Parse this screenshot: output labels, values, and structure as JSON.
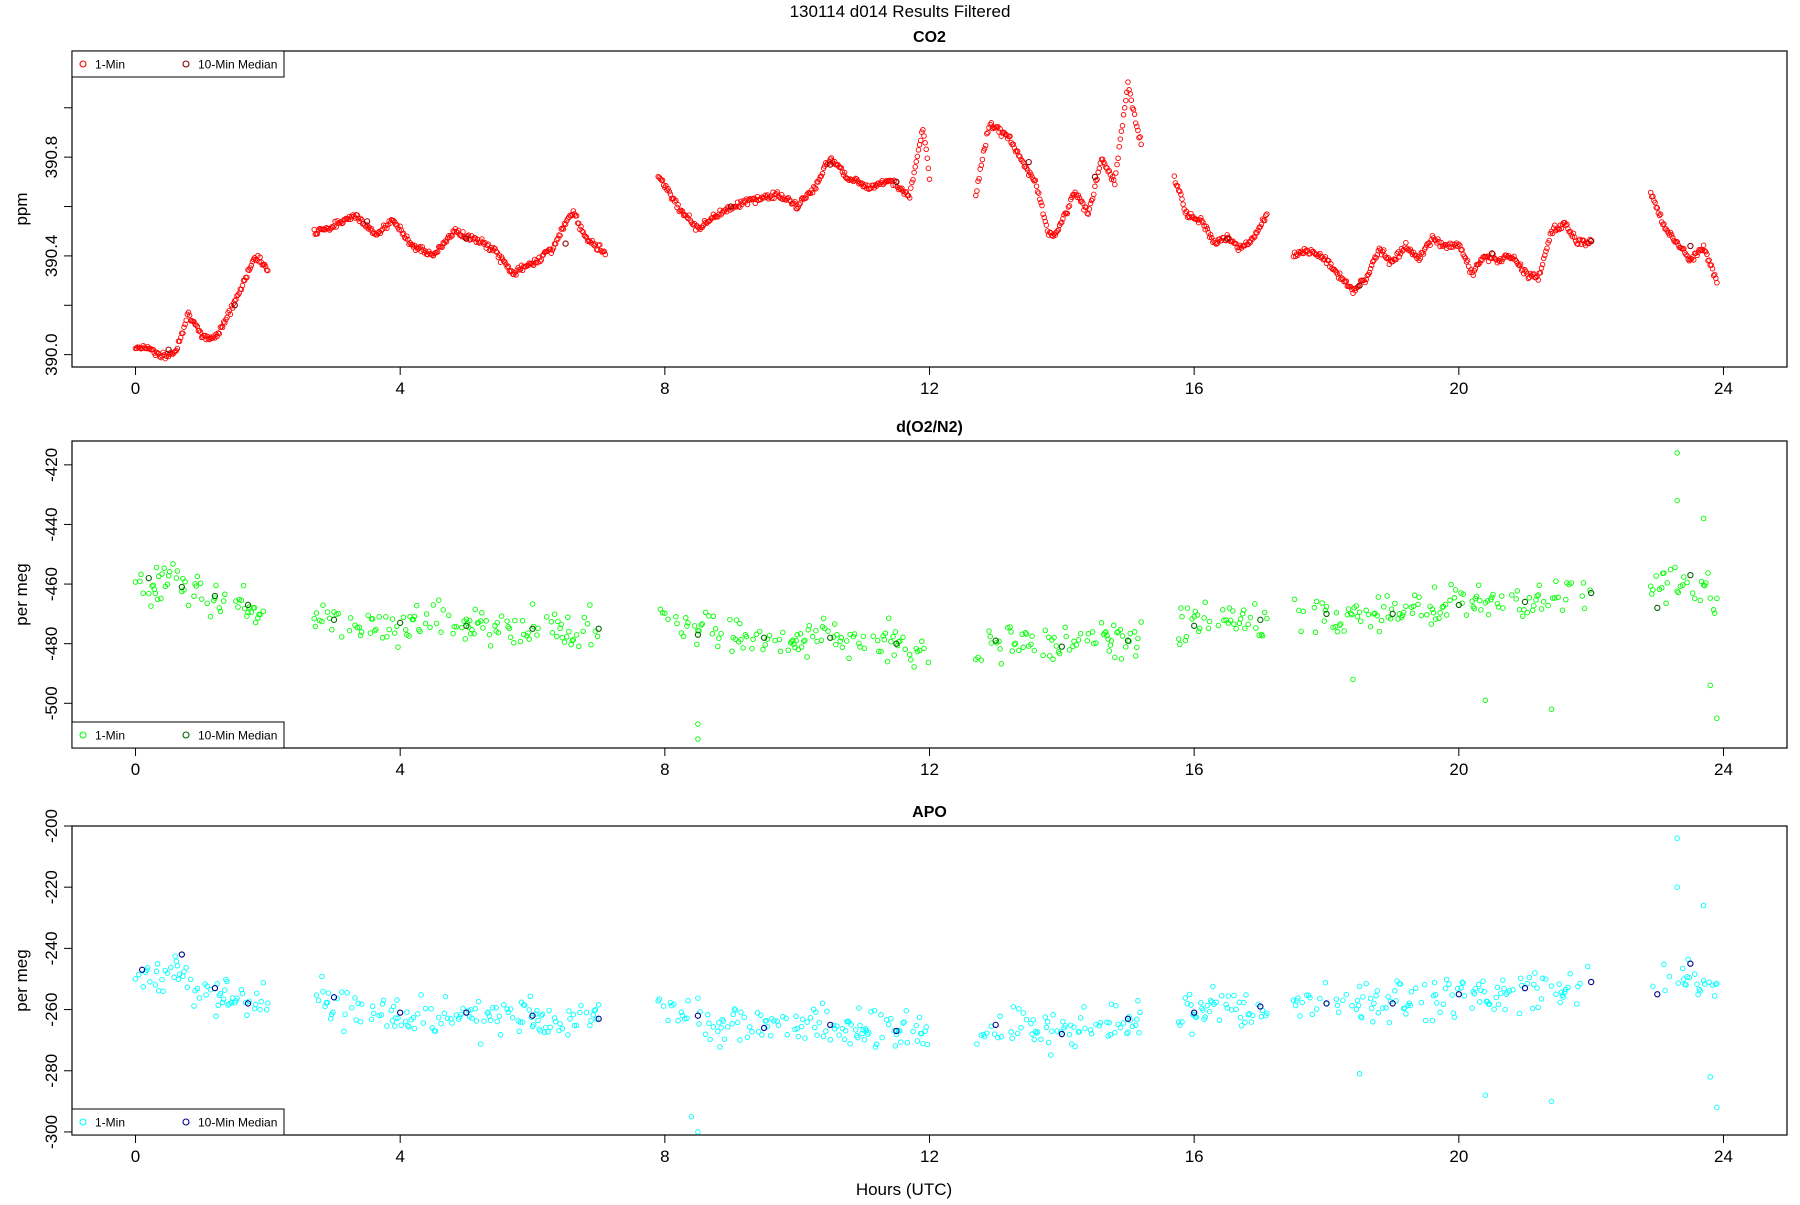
{
  "figure": {
    "title": "130114   d014   Results Filtered",
    "xlabel": "Hours (UTC)"
  },
  "chart_data": [
    {
      "type": "scatter",
      "title": "CO2",
      "xlabel": "",
      "ylabel": "ppm",
      "xlim": [
        -0.96,
        24.96
      ],
      "ylim": [
        389.95,
        391.23
      ],
      "xticks": [
        0,
        4,
        8,
        12,
        16,
        20,
        24
      ],
      "yticks": [
        390.0,
        390.4,
        390.8
      ],
      "ytick_labels": [
        "390.0",
        "390.4",
        "390.8"
      ],
      "ytick_minor": [
        390.2,
        390.6,
        391.0
      ],
      "legend": {
        "position": "top-left",
        "entries": [
          "1-Min",
          "10-Min Median"
        ]
      },
      "series": [
        {
          "name": "1-Min",
          "color": "#ff0000",
          "marker": "open-circle",
          "segments": [
            {
              "x": [
                0.0,
                0.2,
                0.4,
                0.6,
                0.8,
                1.0,
                1.2,
                1.4,
                1.6,
                1.8,
                2.0
              ],
              "y": [
                390.03,
                390.03,
                389.99,
                390.01,
                390.17,
                390.07,
                390.07,
                390.16,
                390.27,
                390.4,
                390.35
              ]
            },
            {
              "x": [
                2.7,
                3.0,
                3.3,
                3.6,
                3.9,
                4.2,
                4.5,
                4.8,
                5.1,
                5.4,
                5.7,
                6.0,
                6.3,
                6.6,
                6.8,
                7.1
              ],
              "y": [
                390.5,
                390.52,
                390.57,
                390.49,
                390.54,
                390.44,
                390.4,
                390.5,
                390.47,
                390.43,
                390.33,
                390.37,
                390.43,
                390.58,
                390.48,
                390.41
              ]
            },
            {
              "x": [
                7.9,
                8.2,
                8.5,
                8.8,
                9.1,
                9.4,
                9.7,
                10.0,
                10.3,
                10.5,
                10.8,
                11.1,
                11.4,
                11.7,
                11.9,
                12.0
              ],
              "y": [
                390.73,
                390.6,
                390.51,
                390.57,
                390.61,
                390.63,
                390.65,
                390.6,
                390.69,
                390.8,
                390.71,
                390.68,
                390.71,
                390.64,
                390.92,
                390.72
              ]
            },
            {
              "x": [
                12.7,
                12.9,
                13.0,
                13.2,
                13.4,
                13.6,
                13.8,
                13.9,
                14.2,
                14.4,
                14.6,
                14.8,
                15.0,
                15.1,
                15.2
              ],
              "y": [
                390.65,
                390.93,
                390.92,
                390.88,
                390.78,
                390.7,
                390.49,
                390.48,
                390.66,
                390.57,
                390.79,
                390.7,
                391.1,
                390.96,
                390.86
              ]
            },
            {
              "x": [
                15.7,
                15.9,
                16.1,
                16.3,
                16.5,
                16.7,
                16.9,
                17.1
              ],
              "y": [
                390.72,
                390.56,
                390.55,
                390.45,
                390.48,
                390.43,
                390.47,
                390.57
              ]
            },
            {
              "x": [
                17.5,
                17.8,
                18.0,
                18.2,
                18.4,
                18.6,
                18.8,
                19.0,
                19.2,
                19.4,
                19.6,
                19.8,
                20.0,
                20.2,
                20.4,
                20.6,
                20.8,
                21.0,
                21.2,
                21.4,
                21.6,
                21.8,
                22.0
              ],
              "y": [
                390.4,
                390.42,
                390.38,
                390.32,
                390.26,
                390.31,
                390.43,
                390.37,
                390.44,
                390.39,
                390.47,
                390.44,
                390.45,
                390.33,
                390.4,
                390.38,
                390.4,
                390.33,
                390.31,
                390.5,
                390.53,
                390.45,
                390.46
              ]
            },
            {
              "x": [
                22.9,
                23.1,
                23.3,
                23.5,
                23.7,
                23.9
              ],
              "y": [
                390.66,
                390.52,
                390.45,
                390.38,
                390.44,
                390.29
              ]
            }
          ]
        },
        {
          "name": "10-Min Median",
          "color": "#8b0000",
          "marker": "open-circle",
          "x": [
            0.5,
            1.5,
            3.5,
            5.0,
            6.5,
            9.0,
            10.5,
            11.5,
            13.5,
            14.5,
            16.5,
            18.5,
            20.5,
            22.0,
            23.5
          ],
          "y": [
            390.02,
            390.2,
            390.54,
            390.47,
            390.45,
            390.6,
            390.77,
            390.7,
            390.78,
            390.72,
            390.47,
            390.28,
            390.41,
            390.46,
            390.44
          ]
        }
      ]
    },
    {
      "type": "scatter",
      "title": "d(O2/N2)",
      "xlabel": "",
      "ylabel": "per meg",
      "xlim": [
        -0.96,
        24.96
      ],
      "ylim": [
        -515,
        -412
      ],
      "xticks": [
        0,
        4,
        8,
        12,
        16,
        20,
        24
      ],
      "yticks": [
        -500,
        -480,
        -460,
        -440,
        -420
      ],
      "ytick_labels": [
        "-500",
        "-480",
        "-460",
        "-440",
        "-420"
      ],
      "legend": {
        "position": "bottom-left",
        "entries": [
          "1-Min",
          "10-Min Median"
        ]
      },
      "series": [
        {
          "name": "1-Min",
          "color": "#00ff00",
          "marker": "open-circle",
          "segments": [
            {
              "x": [
                0.0,
                0.3,
                0.6,
                0.9,
                1.2,
                1.5,
                1.8,
                2.0
              ],
              "y": [
                -458,
                -459,
                -458,
                -463,
                -465,
                -466,
                -469,
                -471
              ]
            },
            {
              "x": [
                2.7,
                3.0,
                3.5,
                4.0,
                4.5,
                5.0,
                5.5,
                6.0,
                6.5,
                7.0
              ],
              "y": [
                -470,
                -472,
                -474,
                -473,
                -472,
                -474,
                -475,
                -474,
                -476,
                -475
              ]
            },
            {
              "x": [
                7.9,
                8.3,
                8.8,
                9.3,
                9.8,
                10.3,
                10.8,
                11.3,
                11.8,
                12.0
              ],
              "y": [
                -468,
                -474,
                -477,
                -478,
                -479,
                -477,
                -478,
                -479,
                -481,
                -484
              ]
            },
            {
              "x": [
                12.7,
                13.1,
                13.5,
                14.0,
                14.5,
                15.0,
                15.2
              ],
              "y": [
                -482,
                -479,
                -480,
                -481,
                -480,
                -478,
                -478
              ]
            },
            {
              "x": [
                15.7,
                16.0,
                16.5,
                17.0,
                17.1
              ],
              "y": [
                -476,
                -474,
                -472,
                -474,
                -472
              ]
            },
            {
              "x": [
                17.5,
                18.0,
                18.5,
                19.0,
                19.5,
                20.0,
                20.5,
                21.0,
                21.5,
                22.0
              ],
              "y": [
                -470,
                -470,
                -471,
                -469,
                -468,
                -467,
                -466,
                -466,
                -465,
                -463
              ]
            },
            {
              "x": [
                22.9,
                23.2,
                23.5,
                23.8,
                23.9
              ],
              "y": [
                -462,
                -460,
                -462,
                -464,
                -466
              ]
            }
          ],
          "outliers": {
            "x": [
              8.5,
              8.5,
              18.4,
              20.4,
              21.4,
              23.3,
              23.3,
              23.7,
              23.8,
              23.9
            ],
            "y": [
              -507,
              -512,
              -492,
              -499,
              -502,
              -416,
              -432,
              -438,
              -494,
              -505
            ]
          }
        },
        {
          "name": "10-Min Median",
          "color": "#006400",
          "marker": "open-circle",
          "x": [
            0.2,
            0.7,
            1.2,
            1.7,
            3.0,
            4.0,
            5.0,
            6.0,
            7.0,
            8.5,
            9.5,
            10.5,
            11.5,
            13.0,
            14.0,
            15.0,
            16.0,
            17.0,
            18.0,
            19.0,
            20.0,
            21.0,
            22.0,
            23.0,
            23.5
          ],
          "y": [
            -458,
            -461,
            -464,
            -467,
            -472,
            -473,
            -474,
            -475,
            -475,
            -477,
            -478,
            -478,
            -480,
            -479,
            -481,
            -479,
            -474,
            -472,
            -470,
            -470,
            -467,
            -466,
            -463,
            -468,
            -457
          ]
        }
      ]
    },
    {
      "type": "scatter",
      "title": "APO",
      "xlabel": "Hours (UTC)",
      "ylabel": "per meg",
      "xlim": [
        -0.96,
        24.96
      ],
      "ylim": [
        -301,
        -200
      ],
      "xticks": [
        0,
        4,
        8,
        12,
        16,
        20,
        24
      ],
      "yticks": [
        -300,
        -280,
        -260,
        -240,
        -220,
        -200
      ],
      "ytick_labels": [
        "-300",
        "-280",
        "-260",
        "-240",
        "-220",
        "-200"
      ],
      "legend": {
        "position": "bottom-left",
        "entries": [
          "1-Min",
          "10-Min Median"
        ]
      },
      "series": [
        {
          "name": "1-Min",
          "color": "#00ffff",
          "marker": "open-circle",
          "segments": [
            {
              "x": [
                0.0,
                0.3,
                0.6,
                0.9,
                1.2,
                1.5,
                1.8,
                2.0
              ],
              "y": [
                -248,
                -250,
                -247,
                -252,
                -254,
                -256,
                -258,
                -259
              ]
            },
            {
              "x": [
                2.7,
                3.0,
                3.5,
                4.0,
                4.5,
                5.0,
                5.5,
                6.0,
                6.5,
                7.0
              ],
              "y": [
                -255,
                -258,
                -260,
                -261,
                -261,
                -262,
                -263,
                -262,
                -264,
                -263
              ]
            },
            {
              "x": [
                7.9,
                8.3,
                8.8,
                9.3,
                9.8,
                10.3,
                10.8,
                11.3,
                11.8,
                12.0
              ],
              "y": [
                -257,
                -262,
                -265,
                -266,
                -266,
                -265,
                -266,
                -266,
                -267,
                -270
              ]
            },
            {
              "x": [
                12.7,
                13.1,
                13.5,
                14.0,
                14.5,
                15.0,
                15.2
              ],
              "y": [
                -268,
                -265,
                -266,
                -268,
                -266,
                -264,
                -263
              ]
            },
            {
              "x": [
                15.7,
                16.0,
                16.5,
                17.0,
                17.1
              ],
              "y": [
                -262,
                -261,
                -260,
                -262,
                -259
              ]
            },
            {
              "x": [
                17.5,
                18.0,
                18.5,
                19.0,
                19.5,
                20.0,
                20.5,
                21.0,
                21.5,
                22.0
              ],
              "y": [
                -258,
                -258,
                -259,
                -257,
                -256,
                -255,
                -254,
                -254,
                -253,
                -251
              ]
            },
            {
              "x": [
                22.9,
                23.2,
                23.5,
                23.8,
                23.9
              ],
              "y": [
                -250,
                -248,
                -250,
                -253,
                -255
              ]
            }
          ],
          "outliers": {
            "x": [
              8.4,
              8.5,
              18.5,
              20.4,
              21.4,
              23.3,
              23.3,
              23.7,
              23.8,
              23.9
            ],
            "y": [
              -295,
              -300,
              -281,
              -288,
              -290,
              -204,
              -220,
              -226,
              -282,
              -292
            ]
          }
        },
        {
          "name": "10-Min Median",
          "color": "#00008b",
          "marker": "open-circle",
          "x": [
            0.1,
            0.7,
            1.2,
            1.7,
            3.0,
            4.0,
            5.0,
            6.0,
            7.0,
            8.5,
            9.5,
            10.5,
            11.5,
            13.0,
            14.0,
            15.0,
            16.0,
            17.0,
            18.0,
            19.0,
            20.0,
            21.0,
            22.0,
            23.0,
            23.5
          ],
          "y": [
            -247,
            -242,
            -253,
            -258,
            -256,
            -261,
            -261,
            -262,
            -263,
            -262,
            -266,
            -265,
            -267,
            -265,
            -268,
            -263,
            -261,
            -259,
            -258,
            -258,
            -255,
            -253,
            -251,
            -255,
            -245
          ]
        }
      ]
    }
  ]
}
